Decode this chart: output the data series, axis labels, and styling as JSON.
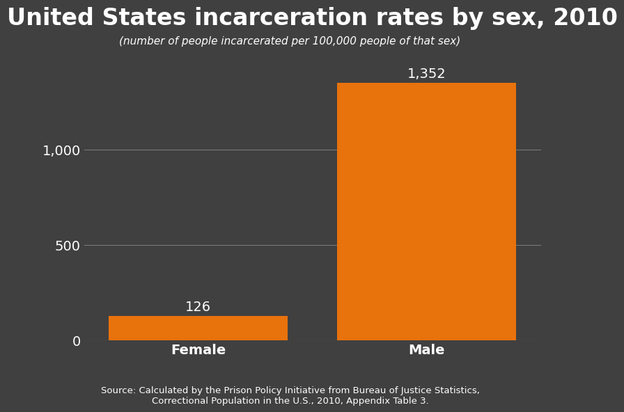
{
  "categories": [
    "Female",
    "Male"
  ],
  "values": [
    126,
    1352
  ],
  "bar_color": "#E8720C",
  "background_color": "#404040",
  "text_color": "#ffffff",
  "title": "United States incarceration rates by sex, 2010",
  "subtitle": "(number of people incarcerated per 100,000 people of that sex)",
  "source": "Source: Calculated by the Prison Policy Initiative from Bureau of Justice Statistics,\nCorrectional Population in the U.S., 2010, Appendix Table 3.",
  "title_fontsize": 24,
  "subtitle_fontsize": 11,
  "label_fontsize": 14,
  "tick_fontsize": 14,
  "annotation_fontsize": 14,
  "source_fontsize": 9.5,
  "ylim": [
    0,
    1480
  ],
  "yticks": [
    0,
    500,
    1000
  ],
  "ytick_labels": [
    "0",
    "500",
    "1,000"
  ],
  "grid_color": "#888888",
  "bar_width": 0.55,
  "x_positions": [
    0.3,
    1.0
  ]
}
